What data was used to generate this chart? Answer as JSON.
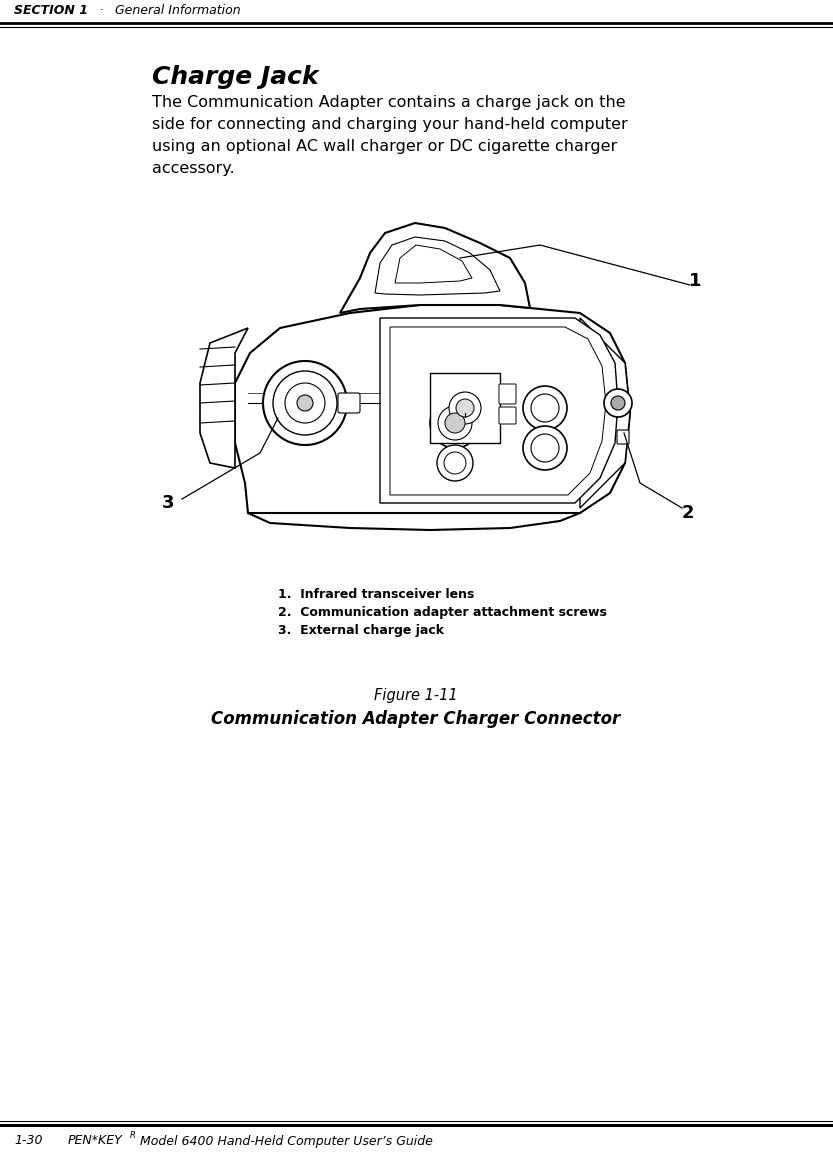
{
  "bg_color": "#ffffff",
  "line_color": "#000000",
  "header_section": "SECTION 1",
  "header_bullet": "·",
  "header_subtitle": "General Information",
  "section_title": "Charge Jack",
  "body_line1": "The Communication Adapter contains a charge jack on the",
  "body_line2": "side for connecting and charging your hand-held computer",
  "body_line3": "using an optional AC wall charger or DC cigarette charger",
  "body_line4": "accessory.",
  "figure_label": "Figure 1-11",
  "figure_caption": "Communication Adapter Charger Connector",
  "footer_page": "1-30",
  "footer_brand": "PEN*KEY",
  "footer_brand_sup": "R",
  "footer_model": " Model 6400 Hand-Held Computer User’s Guide",
  "callout_1": "1",
  "callout_2": "2",
  "callout_3": "3",
  "legend_1": "1.  Infrared transceiver lens",
  "legend_2": "2.  Communication adapter attachment screws",
  "legend_3": "3.  External charge jack"
}
